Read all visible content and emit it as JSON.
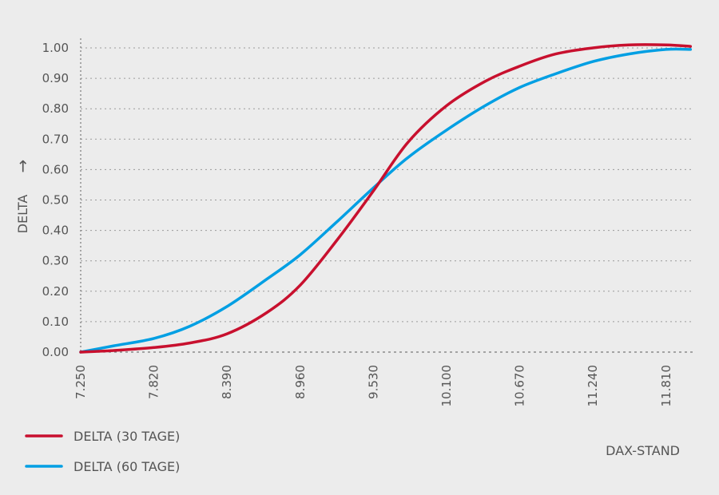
{
  "chart_data": {
    "type": "line",
    "title": "",
    "xlabel": "DAX-STAND",
    "ylabel": "DELTA",
    "ylabel_arrow": "→",
    "x_ticks": [
      "7.250",
      "7.820",
      "8.390",
      "8.960",
      "9.530",
      "10.100",
      "10.670",
      "11.240",
      "11.810"
    ],
    "y_ticks": [
      "0.00",
      "0.10",
      "0.20",
      "0.30",
      "0.40",
      "0.50",
      "0.60",
      "0.70",
      "0.80",
      "0.90",
      "1.00"
    ],
    "xlim": [
      7250,
      12000
    ],
    "ylim": [
      0,
      1.0
    ],
    "grid": "horizontal dotted",
    "legend_position": "bottom-left",
    "series": [
      {
        "name": "DELTA (30 TAGE)",
        "color": "#c8102e",
        "x": [
          7250,
          7500,
          7820,
          8100,
          8390,
          8700,
          8960,
          9250,
          9530,
          9800,
          10100,
          10400,
          10670,
          10950,
          11240,
          11520,
          11810,
          12000
        ],
        "y": [
          0.0,
          0.005,
          0.015,
          0.03,
          0.06,
          0.13,
          0.22,
          0.37,
          0.53,
          0.69,
          0.81,
          0.89,
          0.94,
          0.98,
          1.0,
          1.01,
          1.01,
          1.005
        ]
      },
      {
        "name": "DELTA (60 TAGE)",
        "color": "#009fe3",
        "x": [
          7250,
          7500,
          7820,
          8100,
          8390,
          8700,
          8960,
          9250,
          9530,
          9800,
          10100,
          10400,
          10670,
          10950,
          11240,
          11520,
          11810,
          12000
        ],
        "y": [
          0.0,
          0.02,
          0.045,
          0.085,
          0.15,
          0.24,
          0.32,
          0.43,
          0.54,
          0.64,
          0.73,
          0.81,
          0.87,
          0.915,
          0.955,
          0.98,
          0.995,
          0.995
        ]
      }
    ]
  }
}
